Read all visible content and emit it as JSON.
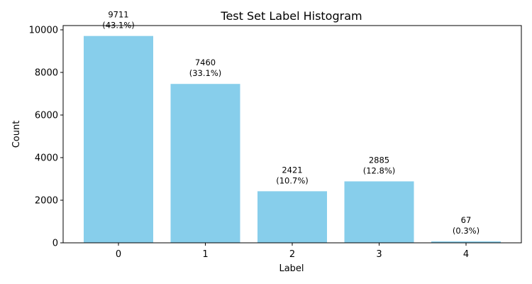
{
  "chart_data": {
    "type": "bar",
    "title": "Test Set Label Histogram",
    "xlabel": "Label",
    "ylabel": "Count",
    "categories": [
      "0",
      "1",
      "2",
      "3",
      "4"
    ],
    "values": [
      9711,
      7460,
      2421,
      2885,
      67
    ],
    "data_labels": [
      [
        "9711",
        "(43.1%)"
      ],
      [
        "7460",
        "(33.1%)"
      ],
      [
        "2421",
        "(10.7%)"
      ],
      [
        "2885",
        "(12.8%)"
      ],
      [
        "67",
        "(0.3%)"
      ]
    ],
    "ylim": [
      0,
      10200
    ],
    "yticks": [
      0,
      2000,
      4000,
      6000,
      8000,
      10000
    ],
    "grid": false,
    "legend": "none",
    "bar_color": "#87ceeb"
  }
}
